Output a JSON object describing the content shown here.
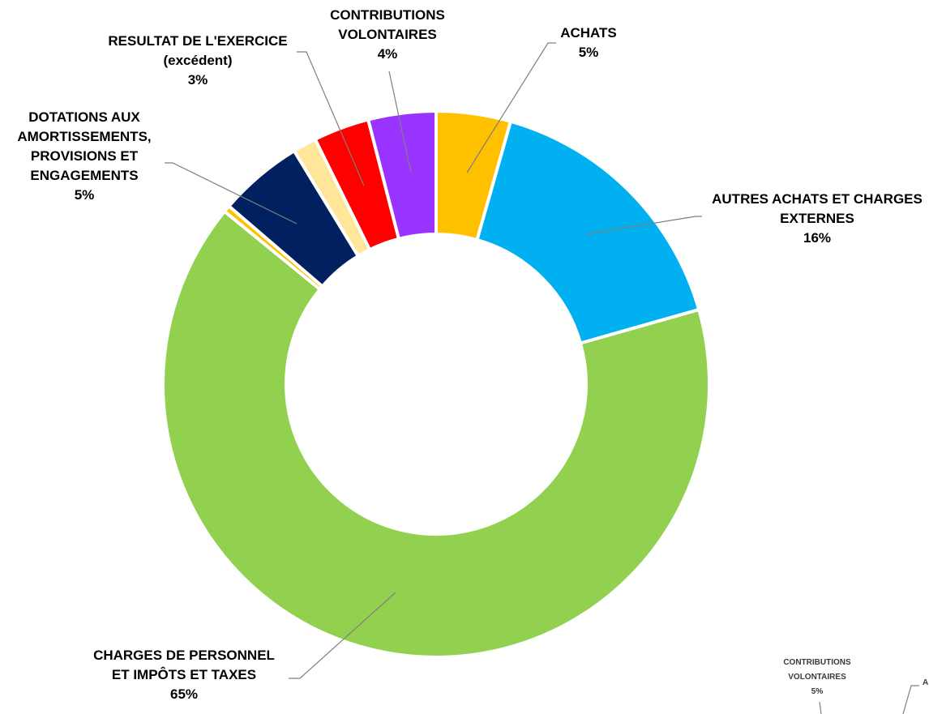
{
  "chart_data": [
    {
      "type": "pie",
      "variant": "donut",
      "series": [
        {
          "name": "ACHATS",
          "label_lines": [
            "ACHATS"
          ],
          "pct_label": "5%",
          "value": 4.4,
          "color": "#FFC000"
        },
        {
          "name": "AUTRES ACHATS ET CHARGES EXTERNES",
          "label_lines": [
            "AUTRES ACHATS ET CHARGES",
            "EXTERNES"
          ],
          "pct_label": "16%",
          "value": 16.2,
          "color": "#00B0F0"
        },
        {
          "name": "CHARGES DE PERSONNEL ET IMPÔTS ET TAXES",
          "label_lines": [
            "CHARGES DE PERSONNEL",
            "ET IMPÔTS ET TAXES"
          ],
          "pct_label": "65%",
          "value": 65.3,
          "color": "#92D050"
        },
        {
          "name": "",
          "label_lines": [],
          "pct_label": "",
          "value": 0.4,
          "color": "#FFC000"
        },
        {
          "name": "DOTATIONS AUX AMORTISSEMENTS, PROVISIONS ET ENGAGEMENTS",
          "label_lines": [
            "DOTATIONS AUX",
            "AMORTISSEMENTS,",
            "PROVISIONS ET",
            "ENGAGEMENTS"
          ],
          "pct_label": "5%",
          "value": 5.0,
          "color": "#002060"
        },
        {
          "name": "",
          "label_lines": [],
          "pct_label": "",
          "value": 1.4,
          "color": "#FFE699"
        },
        {
          "name": "RESULTAT DE L'EXERCICE (excédent)",
          "label_lines": [
            "RESULTAT DE L'EXERCICE",
            "(excédent)"
          ],
          "pct_label": "3%",
          "value": 3.3,
          "color": "#FF0000"
        },
        {
          "name": "CONTRIBUTIONS VOLONTAIRES",
          "label_lines": [
            "CONTRIBUTIONS",
            "VOLONTAIRES"
          ],
          "pct_label": "4%",
          "value": 4.0,
          "color": "#9933FF"
        }
      ],
      "legend": "none",
      "data_labels": "outside with leader lines"
    },
    {
      "type": "pie",
      "variant": "donut",
      "partially_visible": true,
      "visible_labels": [
        {
          "label_lines": [
            "CONTRIBUTIONS",
            "VOLONTAIRES"
          ],
          "pct_label": "5%"
        },
        {
          "label_lines": [
            "A"
          ],
          "pct_label": ""
        }
      ]
    }
  ]
}
